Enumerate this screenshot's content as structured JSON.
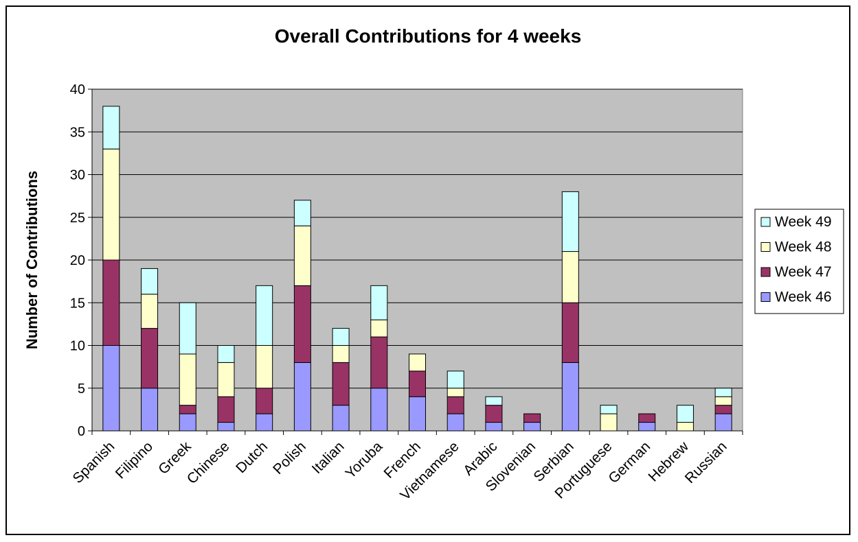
{
  "chart_data": {
    "type": "bar",
    "stacked": true,
    "title": "Overall Contributions for 4 weeks",
    "xlabel": "",
    "ylabel": "Number of Contributions",
    "ylim": [
      0,
      40
    ],
    "yticks": [
      0,
      5,
      10,
      15,
      20,
      25,
      30,
      35,
      40
    ],
    "grid": true,
    "legend_position": "right",
    "plot_background": "#c0c0c0",
    "categories": [
      "Spanish",
      "Filipino",
      "Greek",
      "Chinese",
      "Dutch",
      "Polish",
      "Italian",
      "Yoruba",
      "French",
      "Vietnamese",
      "Arabic",
      "Slovenian",
      "Serbian",
      "Portuguese",
      "German",
      "Hebrew",
      "Russian"
    ],
    "series": [
      {
        "name": "Week 46",
        "color": "#9999ff",
        "values": [
          10,
          5,
          2,
          1,
          2,
          8,
          3,
          5,
          4,
          2,
          1,
          1,
          8,
          0,
          1,
          0,
          2
        ]
      },
      {
        "name": "Week 47",
        "color": "#993366",
        "values": [
          10,
          7,
          1,
          3,
          3,
          9,
          5,
          6,
          3,
          2,
          2,
          1,
          7,
          0,
          1,
          0,
          1
        ]
      },
      {
        "name": "Week 48",
        "color": "#ffffcc",
        "values": [
          13,
          4,
          6,
          4,
          5,
          7,
          2,
          2,
          2,
          1,
          0,
          0,
          6,
          2,
          0,
          1,
          1
        ]
      },
      {
        "name": "Week 49",
        "color": "#ccffff",
        "values": [
          5,
          3,
          6,
          2,
          7,
          3,
          2,
          4,
          0,
          2,
          1,
          0,
          7,
          1,
          0,
          2,
          1
        ]
      }
    ]
  }
}
